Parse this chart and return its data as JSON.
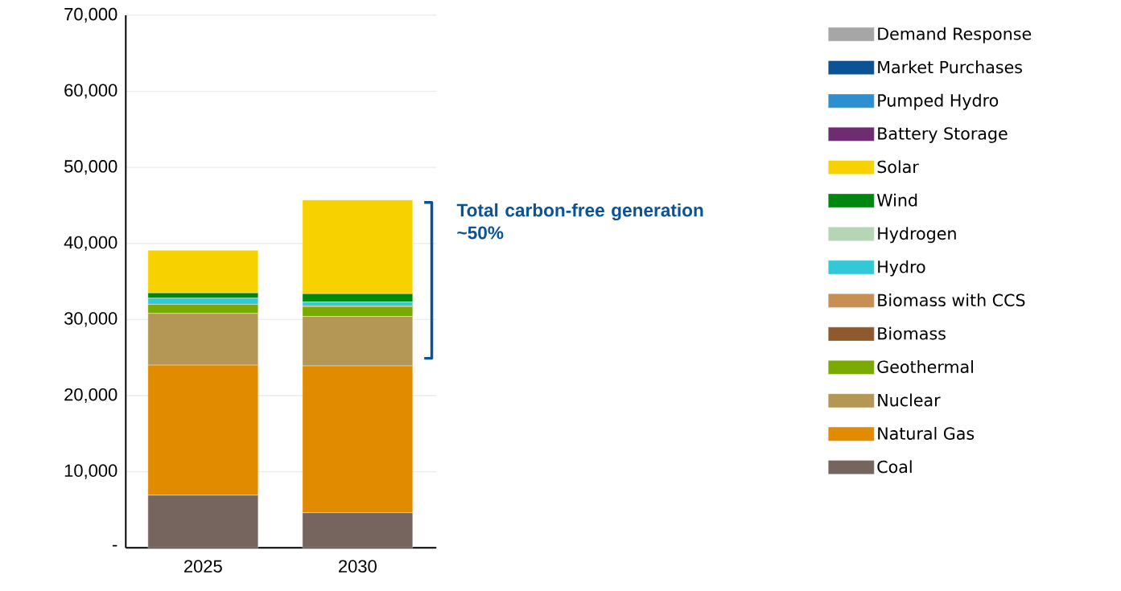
{
  "chart_data": {
    "type": "bar",
    "stacked": true,
    "categories": [
      "2025",
      "2030"
    ],
    "series": [
      {
        "name": "Coal",
        "color": "#76655e",
        "values": [
          6900,
          4600
        ]
      },
      {
        "name": "Natural Gas",
        "color": "#e08b00",
        "values": [
          17100,
          19300
        ]
      },
      {
        "name": "Nuclear",
        "color": "#b59755",
        "values": [
          6800,
          6500
        ]
      },
      {
        "name": "Geothermal",
        "color": "#79aa00",
        "values": [
          1200,
          1300
        ]
      },
      {
        "name": "Biomass",
        "color": "#8e5a2d",
        "values": [
          0,
          100
        ]
      },
      {
        "name": "Biomass with CCS",
        "color": "#c88f55",
        "values": [
          0,
          0
        ]
      },
      {
        "name": "Hydro",
        "color": "#32c8d8",
        "values": [
          800,
          500
        ]
      },
      {
        "name": "Hydrogen",
        "color": "#b5d5b5",
        "values": [
          0,
          0
        ]
      },
      {
        "name": "Wind",
        "color": "#00870f",
        "values": [
          700,
          1100
        ]
      },
      {
        "name": "Solar",
        "color": "#f8d100",
        "values": [
          5600,
          12300
        ]
      },
      {
        "name": "Battery Storage",
        "color": "#6f2c73",
        "values": [
          0,
          0
        ]
      },
      {
        "name": "Pumped Hydro",
        "color": "#2e8fd0",
        "values": [
          0,
          0
        ]
      },
      {
        "name": "Market Purchases",
        "color": "#0b5394",
        "values": [
          0,
          0
        ]
      },
      {
        "name": "Demand Response",
        "color": "#a6a6a6",
        "values": [
          0,
          0
        ]
      }
    ],
    "ylim": [
      0,
      70000
    ],
    "yticks": [
      {
        "value": 0,
        "label": "-"
      },
      {
        "value": 10000,
        "label": "10,000"
      },
      {
        "value": 20000,
        "label": "20,000"
      },
      {
        "value": 30000,
        "label": "30,000"
      },
      {
        "value": 40000,
        "label": "40,000"
      },
      {
        "value": 50000,
        "label": "50,000"
      },
      {
        "value": 60000,
        "label": "60,000"
      },
      {
        "value": 70000,
        "label": "70,000"
      }
    ],
    "grid": "y",
    "legend": "right",
    "annotations": [
      "Total carbon-free generation ~50%"
    ]
  }
}
